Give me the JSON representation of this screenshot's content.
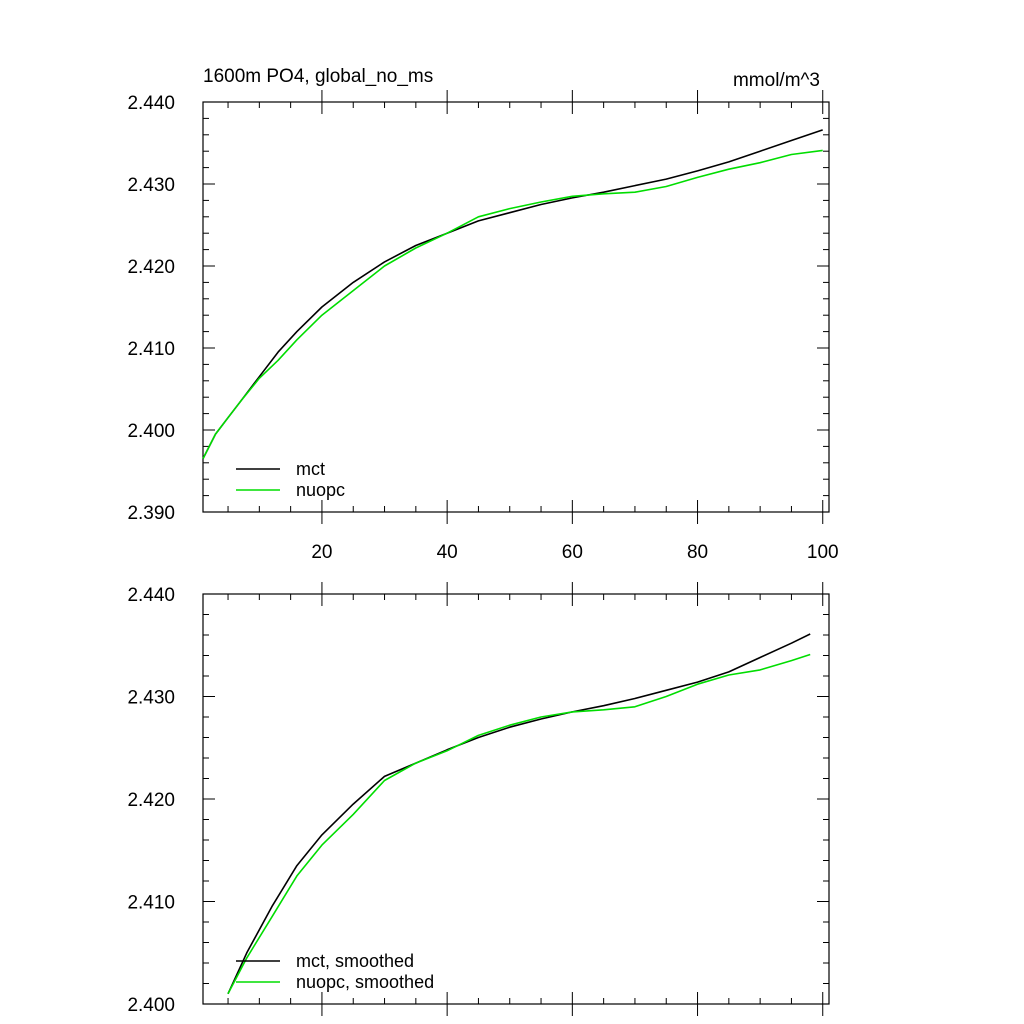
{
  "chart_data": [
    {
      "type": "line",
      "title": "1600m PO4, global_no_ms",
      "units": "mmol/m^3",
      "xlim": [
        1,
        101
      ],
      "ylim": [
        2.39,
        2.44
      ],
      "x_ticks": [
        20,
        40,
        60,
        80,
        100
      ],
      "y_ticks": [
        "2.390",
        "2.400",
        "2.410",
        "2.420",
        "2.430",
        "2.440"
      ],
      "legend_position": "bottom-left",
      "series": [
        {
          "name": "mct",
          "color": "#000000",
          "x": [
            1,
            3,
            5,
            7,
            10,
            13,
            16,
            20,
            25,
            30,
            35,
            40,
            45,
            50,
            55,
            60,
            65,
            70,
            75,
            80,
            85,
            90,
            95,
            100
          ],
          "y": [
            2.3965,
            2.3995,
            2.4015,
            2.4035,
            2.4065,
            2.4095,
            2.412,
            2.415,
            2.418,
            2.4205,
            2.4225,
            2.424,
            2.4255,
            2.4265,
            2.4275,
            2.4283,
            2.429,
            2.4298,
            2.4306,
            2.4316,
            2.4327,
            2.434,
            2.4353,
            2.4366
          ]
        },
        {
          "name": "nuopc",
          "color": "#00dd00",
          "x": [
            1,
            3,
            5,
            7,
            10,
            13,
            16,
            20,
            25,
            30,
            35,
            40,
            45,
            50,
            55,
            60,
            65,
            70,
            75,
            80,
            85,
            90,
            95,
            100
          ],
          "y": [
            2.3965,
            2.3995,
            2.4015,
            2.4035,
            2.4063,
            2.4085,
            2.411,
            2.414,
            2.417,
            2.42,
            2.4222,
            2.424,
            2.426,
            2.427,
            2.4278,
            2.4285,
            2.4288,
            2.429,
            2.4297,
            2.4308,
            2.4318,
            2.4326,
            2.4336,
            2.4341
          ]
        }
      ]
    },
    {
      "type": "line",
      "xlim": [
        1,
        101
      ],
      "ylim": [
        2.4,
        2.44
      ],
      "y_ticks": [
        "2.400",
        "2.410",
        "2.420",
        "2.430",
        "2.440"
      ],
      "legend_position": "bottom-left",
      "series": [
        {
          "name": "mct, smoothed",
          "color": "#000000",
          "x": [
            5,
            8,
            12,
            16,
            20,
            25,
            30,
            35,
            40,
            45,
            50,
            55,
            60,
            65,
            70,
            75,
            80,
            85,
            90,
            95,
            98
          ],
          "y": [
            2.401,
            2.405,
            2.4095,
            2.4135,
            2.4165,
            2.4195,
            2.4222,
            2.4235,
            2.4248,
            2.426,
            2.427,
            2.4278,
            2.4285,
            2.4291,
            2.4298,
            2.4306,
            2.4314,
            2.4324,
            2.4338,
            2.4352,
            2.4361
          ]
        },
        {
          "name": "nuopc, smoothed",
          "color": "#00dd00",
          "x": [
            5,
            8,
            12,
            16,
            20,
            25,
            30,
            35,
            40,
            45,
            50,
            55,
            60,
            65,
            70,
            75,
            80,
            85,
            90,
            95,
            98
          ],
          "y": [
            2.401,
            2.4045,
            2.4085,
            2.4125,
            2.4155,
            2.4185,
            2.4218,
            2.4235,
            2.4247,
            2.4262,
            2.4272,
            2.428,
            2.4285,
            2.4287,
            2.429,
            2.43,
            2.4312,
            2.4321,
            2.4326,
            2.4335,
            2.4341
          ]
        }
      ]
    }
  ]
}
